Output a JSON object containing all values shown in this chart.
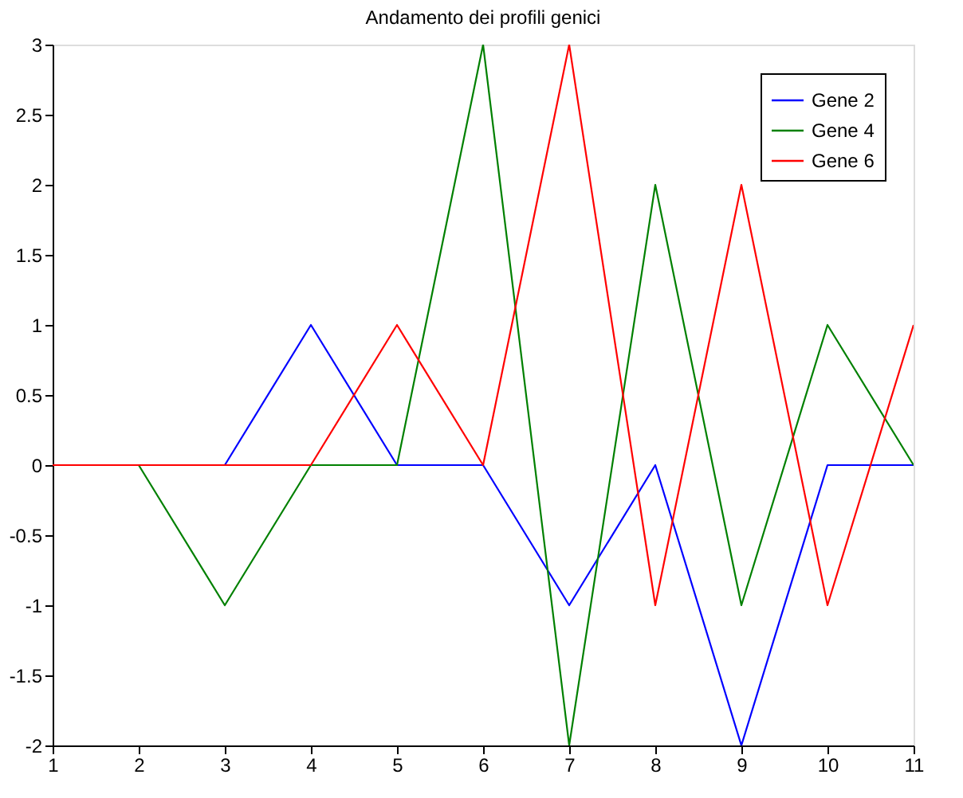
{
  "chart_data": {
    "type": "line",
    "title": "Andamento dei profili genici",
    "x": [
      1,
      2,
      3,
      4,
      5,
      6,
      7,
      8,
      9,
      10,
      11
    ],
    "series": [
      {
        "name": "Gene 2",
        "color": "#0000ff",
        "values": [
          0,
          0,
          0,
          1,
          0,
          0,
          -1,
          0,
          -2,
          0,
          0
        ]
      },
      {
        "name": "Gene 4",
        "color": "#008000",
        "values": [
          0,
          0,
          -1,
          0,
          0,
          3,
          -2,
          2,
          -1,
          1,
          0
        ]
      },
      {
        "name": "Gene 6",
        "color": "#ff0000",
        "values": [
          0,
          0,
          0,
          0,
          1,
          0,
          3,
          -1,
          2,
          -1,
          1
        ]
      }
    ],
    "xlim": [
      1,
      11
    ],
    "xticks": [
      1,
      2,
      3,
      4,
      5,
      6,
      7,
      8,
      9,
      10,
      11
    ],
    "ylim": [
      -2,
      3
    ],
    "yticks": [
      -2,
      -1.5,
      -1,
      -0.5,
      0,
      0.5,
      1,
      1.5,
      2,
      2.5,
      3
    ],
    "grid": false,
    "legend": "top right",
    "marker": "none",
    "line_style": "solid"
  }
}
